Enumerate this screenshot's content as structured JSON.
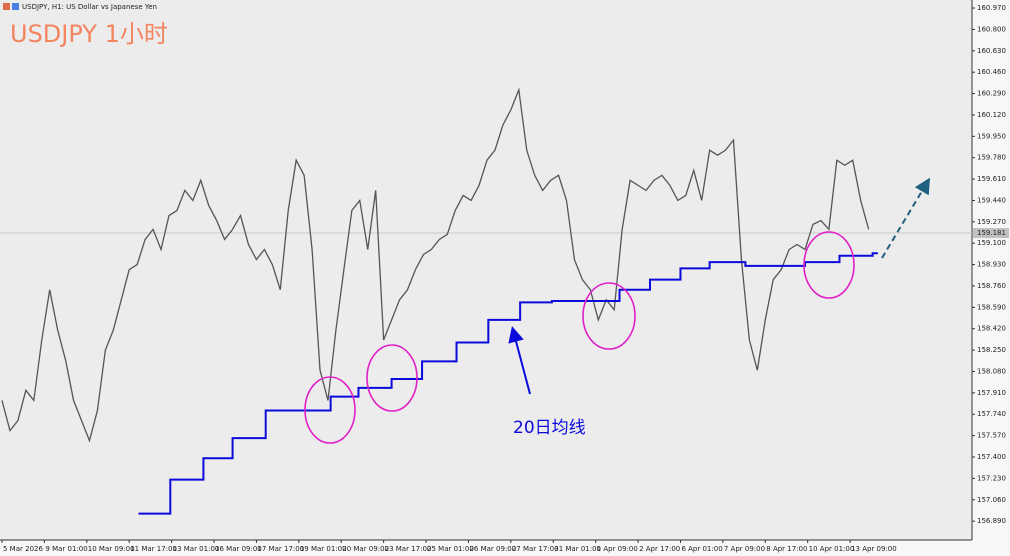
{
  "chart_data": {
    "type": "line",
    "window_title": "USDJPY, H1: US Dollar vs Japanese Yen",
    "title": "USDJPY 1小时",
    "annotations": [
      {
        "text": "20日均线"
      }
    ],
    "xlim": [
      0,
      732
    ],
    "ylim": [
      156.74,
      161.034
    ],
    "yticks": [
      {
        "value": 160.97,
        "label": "160.970"
      },
      {
        "value": 160.8,
        "label": "160.800"
      },
      {
        "value": 160.63,
        "label": "160.630"
      },
      {
        "value": 160.46,
        "label": "160.460"
      },
      {
        "value": 160.29,
        "label": "160.290"
      },
      {
        "value": 160.12,
        "label": "160.120"
      },
      {
        "value": 159.95,
        "label": "159.950"
      },
      {
        "value": 159.78,
        "label": "159.780"
      },
      {
        "value": 159.61,
        "label": "159.610"
      },
      {
        "value": 159.44,
        "label": "159.440"
      },
      {
        "value": 159.27,
        "label": "159.270"
      },
      {
        "value": 159.1,
        "label": "159.100"
      },
      {
        "value": 158.93,
        "label": "158.930"
      },
      {
        "value": 158.76,
        "label": "158.760"
      },
      {
        "value": 158.59,
        "label": "158.590"
      },
      {
        "value": 158.42,
        "label": "158.420"
      },
      {
        "value": 158.25,
        "label": "158.250"
      },
      {
        "value": 158.08,
        "label": "158.080"
      },
      {
        "value": 157.91,
        "label": "157.910"
      },
      {
        "value": 157.74,
        "label": "157.740"
      },
      {
        "value": 157.57,
        "label": "157.570"
      },
      {
        "value": 157.4,
        "label": "157.400"
      },
      {
        "value": 157.23,
        "label": "157.230"
      },
      {
        "value": 157.06,
        "label": "157.060"
      },
      {
        "value": 156.89,
        "label": "156.890"
      }
    ],
    "xticks": [
      {
        "value": 0,
        "label": "5 Mar 2026"
      },
      {
        "value": 32,
        "label": "9 Mar 01:00"
      },
      {
        "value": 64,
        "label": "10 Mar 09:00"
      },
      {
        "value": 96,
        "label": "11 Mar 17:00"
      },
      {
        "value": 128,
        "label": "13 Mar 01:00"
      },
      {
        "value": 160,
        "label": "16 Mar 09:00"
      },
      {
        "value": 192,
        "label": "17 Mar 17:00"
      },
      {
        "value": 224,
        "label": "19 Mar 01:00"
      },
      {
        "value": 256,
        "label": "20 Mar 09:00"
      },
      {
        "value": 288,
        "label": "23 Mar 17:00"
      },
      {
        "value": 320,
        "label": "25 Mar 01:00"
      },
      {
        "value": 352,
        "label": "26 Mar 09:00"
      },
      {
        "value": 384,
        "label": "27 Mar 17:00"
      },
      {
        "value": 416,
        "label": "31 Mar 01:00"
      },
      {
        "value": 448,
        "label": "1 Apr 09:00"
      },
      {
        "value": 480,
        "label": "2 Apr 17:00"
      },
      {
        "value": 512,
        "label": "6 Apr 01:00"
      },
      {
        "value": 544,
        "label": "7 Apr 09:00"
      },
      {
        "value": 576,
        "label": "8 Apr 17:00"
      },
      {
        "value": 608,
        "label": "10 Apr 01:00"
      },
      {
        "value": 640,
        "label": "13 Apr 09:00"
      }
    ],
    "current_price": {
      "value": 159.181,
      "label": "159.181"
    },
    "series": [
      {
        "color": "#555555",
        "step": false,
        "x": [
          0,
          6,
          12,
          18,
          24,
          30,
          36,
          42,
          48,
          54,
          60,
          66,
          72,
          78,
          84,
          90,
          96,
          102,
          108,
          114,
          120,
          126,
          132,
          138,
          144,
          150,
          156,
          162,
          168,
          174,
          180,
          186,
          192,
          198,
          204,
          210,
          216,
          222,
          228,
          234,
          240,
          246,
          252,
          258,
          264,
          270,
          276,
          282,
          288,
          294,
          300,
          306,
          312,
          318,
          324,
          330,
          336,
          342,
          348,
          354,
          360,
          366,
          372,
          378,
          384,
          390,
          396,
          402,
          408,
          414,
          420,
          426,
          432,
          438,
          444,
          450,
          456,
          462,
          468,
          474,
          480,
          486,
          492,
          498,
          504,
          510,
          516,
          522,
          528,
          534,
          540,
          546,
          552,
          558,
          564,
          570,
          576,
          582,
          588,
          594,
          600,
          606,
          612,
          618,
          624,
          630,
          636,
          642,
          648,
          654
        ],
        "values": [
          157.85,
          157.61,
          157.69,
          157.93,
          157.85,
          158.33,
          158.73,
          158.41,
          158.17,
          157.85,
          157.69,
          157.53,
          157.77,
          158.25,
          158.41,
          158.65,
          158.89,
          158.93,
          159.13,
          159.21,
          159.05,
          159.32,
          159.36,
          159.52,
          159.44,
          159.6,
          159.4,
          159.28,
          159.13,
          159.21,
          159.32,
          159.09,
          158.97,
          159.05,
          158.93,
          158.73,
          159.36,
          159.76,
          159.64,
          159.05,
          158.09,
          157.85,
          158.41,
          158.89,
          159.36,
          159.44,
          159.05,
          159.52,
          158.33,
          158.49,
          158.65,
          158.73,
          158.89,
          159.01,
          159.05,
          159.13,
          159.17,
          159.36,
          159.48,
          159.44,
          159.56,
          159.76,
          159.84,
          160.04,
          160.16,
          160.32,
          159.84,
          159.64,
          159.52,
          159.6,
          159.64,
          159.44,
          158.97,
          158.81,
          158.73,
          158.49,
          158.65,
          158.57,
          159.21,
          159.6,
          159.56,
          159.52,
          159.6,
          159.64,
          159.56,
          159.44,
          159.48,
          159.68,
          159.44,
          159.84,
          159.8,
          159.84,
          159.92,
          158.97,
          158.33,
          158.09,
          158.49,
          158.81,
          158.89,
          159.05,
          159.09,
          159.05,
          159.25,
          159.28,
          159.21,
          159.76,
          159.72,
          159.76,
          159.44,
          159.21
        ]
      },
      {
        "color": "#0a0adc",
        "step": true,
        "x": [
          103,
          127,
          152,
          174,
          199,
          248,
          269,
          294,
          317,
          343,
          367,
          391,
          415,
          466,
          489,
          512,
          534,
          561,
          606,
          632,
          657,
          661
        ],
        "values": [
          156.95,
          157.22,
          157.39,
          157.55,
          157.77,
          157.88,
          157.95,
          158.02,
          158.16,
          158.31,
          158.49,
          158.63,
          158.64,
          158.73,
          158.81,
          158.9,
          158.95,
          158.92,
          158.95,
          159.0,
          159.02,
          159.02
        ]
      }
    ]
  }
}
